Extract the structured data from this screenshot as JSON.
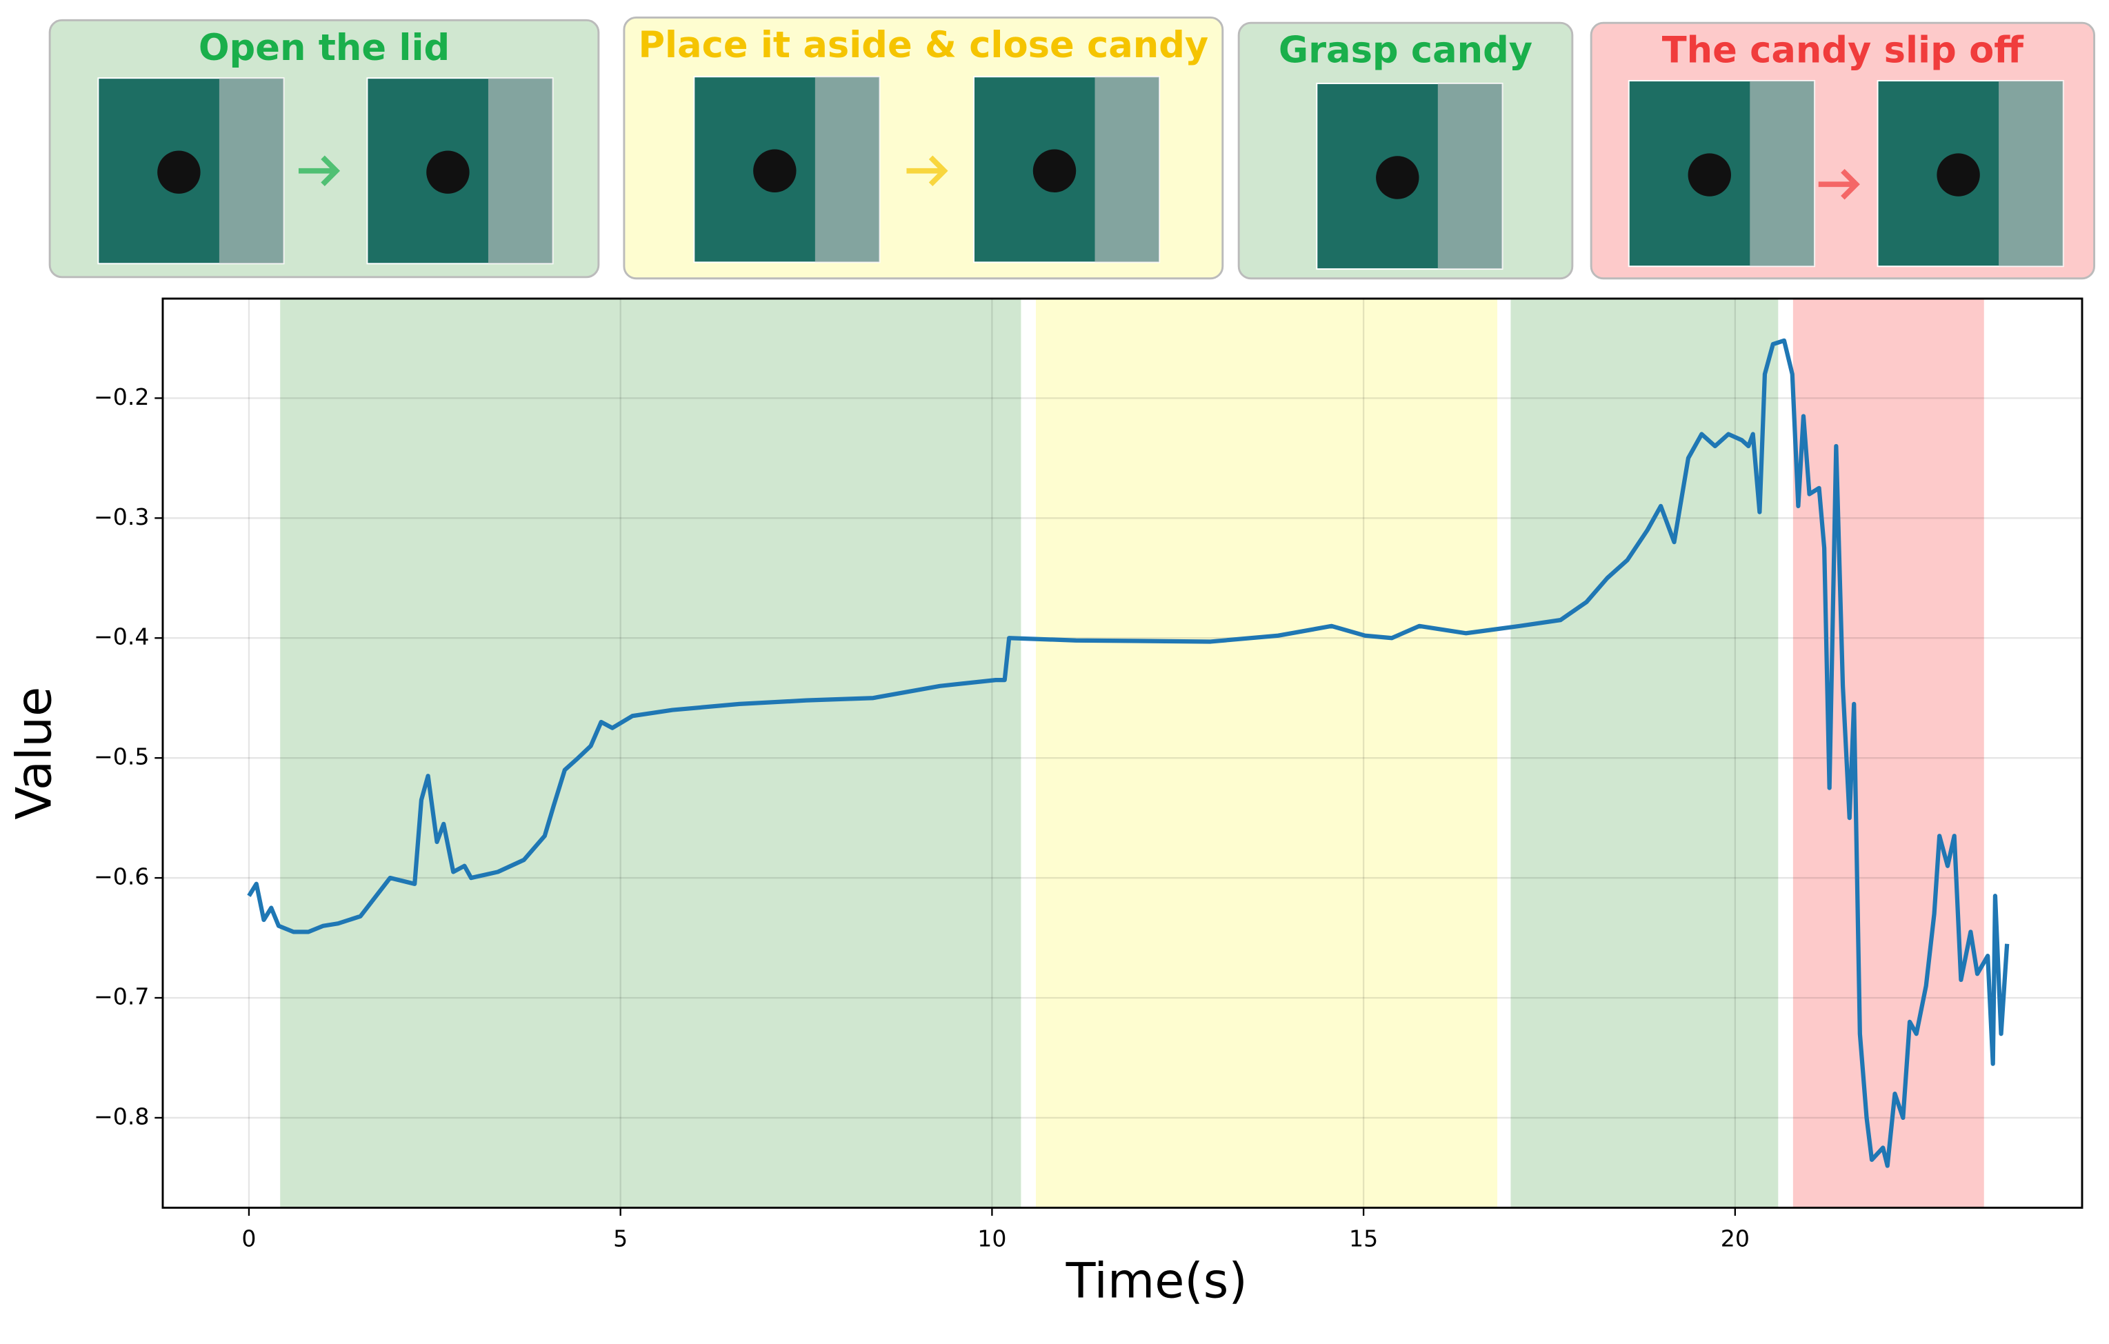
{
  "chart_data": {
    "type": "line",
    "xlabel": "Time(s)",
    "ylabel": "Value",
    "xlim": [
      -1.16,
      24.67
    ],
    "ylim": [
      -0.875,
      -0.117
    ],
    "xticks": [
      0,
      5,
      10,
      15,
      20
    ],
    "yticks": [
      {
        "value": -0.2,
        "label": "−0.2"
      },
      {
        "value": -0.3,
        "label": "−0.3"
      },
      {
        "value": -0.4,
        "label": "−0.4"
      },
      {
        "value": -0.5,
        "label": "−0.5"
      },
      {
        "value": -0.6,
        "label": "−0.6"
      },
      {
        "value": -0.7,
        "label": "−0.7"
      },
      {
        "value": -0.8,
        "label": "−0.8"
      }
    ],
    "grid": true,
    "color": "#1f77b4",
    "phases": [
      {
        "label": "Open the lid",
        "start": 0.42,
        "end": 10.39,
        "color": "#1aaf4b",
        "fill": "#d0e7d0"
      },
      {
        "label": "Place it aside & close candy",
        "start": 10.59,
        "end": 16.8,
        "color": "#f5c400",
        "fill": "#fefdd0"
      },
      {
        "label": "Grasp candy",
        "start": 16.98,
        "end": 20.58,
        "color": "#1aaf4b",
        "fill": "#d0e7d0"
      },
      {
        "label": "The candy slip off",
        "start": 20.78,
        "end": 23.35,
        "color": "#f03c3c",
        "fill": "#fdcaca"
      }
    ],
    "x": [
      0.0,
      0.1,
      0.2,
      0.3,
      0.4,
      0.6,
      0.8,
      1.0,
      1.2,
      1.5,
      1.9,
      2.23,
      2.32,
      2.41,
      2.53,
      2.62,
      2.75,
      2.9,
      2.99,
      3.35,
      3.7,
      3.98,
      4.1,
      4.25,
      4.43,
      4.6,
      4.74,
      4.89,
      5.16,
      5.7,
      6.6,
      7.5,
      8.4,
      9.3,
      10.05,
      10.17,
      10.23,
      11.13,
      12.94,
      13.85,
      14.57,
      15.02,
      15.38,
      15.75,
      16.38,
      17.1,
      17.65,
      18.0,
      18.28,
      18.55,
      18.82,
      19.0,
      19.18,
      19.37,
      19.55,
      19.73,
      19.91,
      20.09,
      20.18,
      20.24,
      20.33,
      20.4,
      20.51,
      20.66,
      20.77,
      20.85,
      20.92,
      21.0,
      21.13,
      21.2,
      21.27,
      21.36,
      21.45,
      21.54,
      21.6,
      21.68,
      21.77,
      21.84,
      21.99,
      22.05,
      22.15,
      22.26,
      22.35,
      22.44,
      22.57,
      22.68,
      22.75,
      22.86,
      22.95,
      23.04,
      23.17,
      23.26,
      23.4,
      23.47,
      23.5,
      23.58,
      23.66
    ],
    "values": [
      -0.615,
      -0.605,
      -0.635,
      -0.625,
      -0.64,
      -0.645,
      -0.645,
      -0.64,
      -0.638,
      -0.632,
      -0.6,
      -0.605,
      -0.535,
      -0.515,
      -0.57,
      -0.555,
      -0.595,
      -0.59,
      -0.6,
      -0.595,
      -0.585,
      -0.565,
      -0.54,
      -0.51,
      -0.5,
      -0.49,
      -0.47,
      -0.475,
      -0.465,
      -0.46,
      -0.455,
      -0.452,
      -0.45,
      -0.44,
      -0.435,
      -0.435,
      -0.4,
      -0.402,
      -0.403,
      -0.398,
      -0.39,
      -0.398,
      -0.4,
      -0.39,
      -0.396,
      -0.39,
      -0.385,
      -0.37,
      -0.35,
      -0.335,
      -0.31,
      -0.29,
      -0.32,
      -0.25,
      -0.23,
      -0.24,
      -0.23,
      -0.235,
      -0.24,
      -0.23,
      -0.295,
      -0.18,
      -0.155,
      -0.152,
      -0.18,
      -0.29,
      -0.215,
      -0.28,
      -0.275,
      -0.325,
      -0.525,
      -0.24,
      -0.44,
      -0.55,
      -0.455,
      -0.73,
      -0.8,
      -0.835,
      -0.825,
      -0.84,
      -0.78,
      -0.8,
      -0.72,
      -0.73,
      -0.69,
      -0.63,
      -0.565,
      -0.59,
      -0.565,
      -0.685,
      -0.645,
      -0.68,
      -0.665,
      -0.755,
      -0.615,
      -0.73,
      -0.655
    ]
  }
}
